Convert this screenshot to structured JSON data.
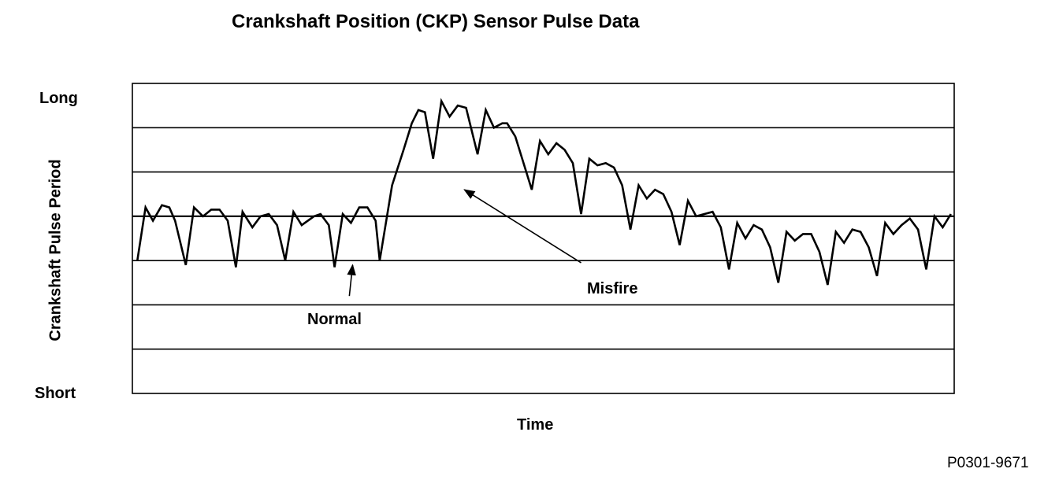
{
  "chart_data": {
    "type": "line",
    "title": "Crankshaft Position (CKP) Sensor Pulse Data",
    "xlabel": "Time",
    "ylabel": "Crankshaft Pulse Period",
    "y_tick_labels": {
      "top": "Long",
      "bottom": "Short"
    },
    "ylim": [
      0,
      7
    ],
    "xlim": [
      0,
      100
    ],
    "grid": true,
    "legend": "none",
    "series": [
      {
        "values": [
          [
            0.6,
            3.0
          ],
          [
            1.6,
            4.2
          ],
          [
            2.5,
            3.9
          ],
          [
            3.6,
            4.25
          ],
          [
            4.5,
            4.2
          ],
          [
            5.2,
            3.9
          ],
          [
            6.5,
            2.9
          ],
          [
            7.5,
            4.2
          ],
          [
            8.6,
            4.0
          ],
          [
            9.6,
            4.15
          ],
          [
            10.6,
            4.15
          ],
          [
            11.6,
            3.9
          ],
          [
            12.6,
            2.85
          ],
          [
            13.4,
            4.1
          ],
          [
            14.6,
            3.75
          ],
          [
            15.6,
            4.0
          ],
          [
            16.6,
            4.05
          ],
          [
            17.6,
            3.8
          ],
          [
            18.6,
            3.0
          ],
          [
            19.6,
            4.1
          ],
          [
            20.6,
            3.8
          ],
          [
            22.1,
            4.0
          ],
          [
            22.9,
            4.05
          ],
          [
            23.9,
            3.8
          ],
          [
            24.6,
            2.85
          ],
          [
            25.6,
            4.05
          ],
          [
            26.6,
            3.85
          ],
          [
            27.6,
            4.2
          ],
          [
            28.6,
            4.2
          ],
          [
            29.6,
            3.9
          ],
          [
            30.1,
            3.0
          ],
          [
            31.6,
            4.7
          ],
          [
            33.0,
            5.5
          ],
          [
            34.0,
            6.1
          ],
          [
            34.8,
            6.4
          ],
          [
            35.6,
            6.35
          ],
          [
            36.6,
            5.3
          ],
          [
            37.6,
            6.6
          ],
          [
            38.6,
            6.25
          ],
          [
            39.6,
            6.5
          ],
          [
            40.6,
            6.45
          ],
          [
            42.0,
            5.4
          ],
          [
            43.0,
            6.4
          ],
          [
            44.0,
            6.0
          ],
          [
            45.0,
            6.1
          ],
          [
            45.6,
            6.1
          ],
          [
            46.6,
            5.8
          ],
          [
            48.6,
            4.6
          ],
          [
            49.6,
            5.7
          ],
          [
            50.6,
            5.4
          ],
          [
            51.6,
            5.65
          ],
          [
            52.6,
            5.5
          ],
          [
            53.6,
            5.2
          ],
          [
            54.6,
            4.05
          ],
          [
            55.6,
            5.3
          ],
          [
            56.6,
            5.15
          ],
          [
            57.6,
            5.2
          ],
          [
            58.6,
            5.1
          ],
          [
            59.6,
            4.7
          ],
          [
            60.6,
            3.7
          ],
          [
            61.6,
            4.7
          ],
          [
            62.6,
            4.4
          ],
          [
            63.6,
            4.6
          ],
          [
            64.6,
            4.5
          ],
          [
            65.6,
            4.1
          ],
          [
            66.6,
            3.35
          ],
          [
            67.6,
            4.35
          ],
          [
            68.6,
            4.0
          ],
          [
            69.6,
            4.05
          ],
          [
            70.6,
            4.1
          ],
          [
            71.6,
            3.75
          ],
          [
            72.6,
            2.8
          ],
          [
            73.6,
            3.85
          ],
          [
            74.6,
            3.5
          ],
          [
            75.6,
            3.8
          ],
          [
            76.6,
            3.7
          ],
          [
            77.6,
            3.3
          ],
          [
            78.6,
            2.5
          ],
          [
            79.6,
            3.65
          ],
          [
            80.6,
            3.45
          ],
          [
            81.6,
            3.6
          ],
          [
            82.6,
            3.6
          ],
          [
            83.6,
            3.2
          ],
          [
            84.6,
            2.45
          ],
          [
            85.6,
            3.65
          ],
          [
            86.6,
            3.4
          ],
          [
            87.6,
            3.7
          ],
          [
            88.6,
            3.65
          ],
          [
            89.6,
            3.3
          ],
          [
            90.6,
            2.65
          ],
          [
            91.6,
            3.85
          ],
          [
            92.6,
            3.6
          ],
          [
            93.6,
            3.8
          ],
          [
            94.6,
            3.95
          ],
          [
            95.6,
            3.7
          ],
          [
            96.6,
            2.8
          ],
          [
            97.6,
            4.0
          ],
          [
            98.6,
            3.75
          ],
          [
            99.6,
            4.05
          ]
        ]
      }
    ],
    "annotations": [
      {
        "text": "Normal",
        "arrow_tail": [
          26.4,
          2.2
        ],
        "arrow_head": [
          26.8,
          2.9
        ]
      },
      {
        "text": "Misfire",
        "arrow_tail": [
          54.6,
          2.95
        ],
        "arrow_head": [
          40.4,
          4.6
        ]
      }
    ],
    "figure_id": "P0301-9671",
    "colors": {
      "line": "#000000",
      "background": "#ffffff"
    }
  }
}
